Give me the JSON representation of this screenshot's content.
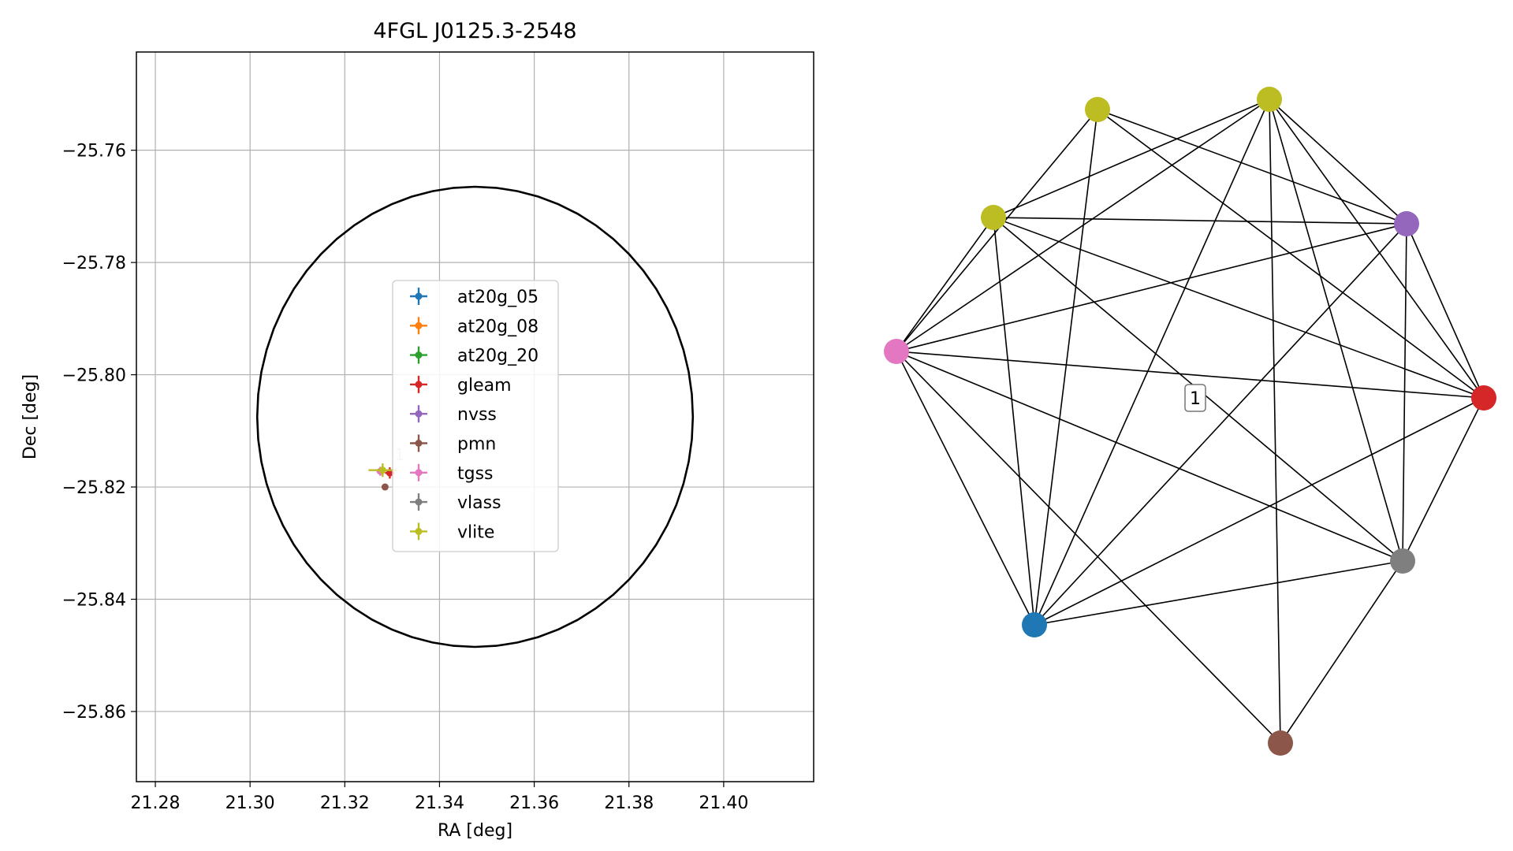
{
  "chart_data": [
    {
      "type": "scatter",
      "title": "4FGL J0125.3-2548",
      "xlabel": "RA [deg]",
      "ylabel": "Dec [deg]",
      "xlim": [
        21.276,
        21.419
      ],
      "ylim": [
        -25.8725,
        -25.7425
      ],
      "xticks": [
        21.28,
        21.3,
        21.32,
        21.34,
        21.36,
        21.38,
        21.4
      ],
      "xtick_labels": [
        "21.28",
        "21.30",
        "21.32",
        "21.34",
        "21.36",
        "21.38",
        "21.40"
      ],
      "yticks": [
        -25.76,
        -25.78,
        -25.8,
        -25.82,
        -25.84,
        -25.86
      ],
      "ytick_labels": [
        "−25.76",
        "−25.78",
        "−25.80",
        "−25.82",
        "−25.84",
        "−25.86"
      ],
      "grid": true,
      "legend_position": "center",
      "series": [
        {
          "name": "at20g_05",
          "color": "#1f77b4",
          "points": []
        },
        {
          "name": "at20g_08",
          "color": "#ff7f0e",
          "points": []
        },
        {
          "name": "at20g_20",
          "color": "#2ca02c",
          "points": []
        },
        {
          "name": "gleam",
          "color": "#d62728",
          "points": [
            {
              "x": 21.3295,
              "y": -25.8175,
              "xerr": 0.001,
              "yerr": 0.001
            }
          ]
        },
        {
          "name": "nvss",
          "color": "#9467bd",
          "points": []
        },
        {
          "name": "pmn",
          "color": "#8c564b",
          "points": [
            {
              "x": 21.3285,
              "y": -25.82,
              "xerr": 0,
              "yerr": 0
            }
          ]
        },
        {
          "name": "tgss",
          "color": "#e377c2",
          "points": [
            {
              "x": 21.3275,
              "y": -25.8172,
              "xerr": 0.0008,
              "yerr": 0.0008
            }
          ]
        },
        {
          "name": "vlass",
          "color": "#7f7f7f",
          "points": []
        },
        {
          "name": "vlite",
          "color": "#bcbd22",
          "points": [
            {
              "x": 21.328,
              "y": -25.817,
              "xerr": 0.003,
              "yerr": 0.0012
            }
          ]
        }
      ],
      "ellipse": {
        "center": [
          21.3475,
          -25.8075
        ],
        "ra_semi_axis": 0.046,
        "dec_semi_axis": 0.041,
        "color": "#000000"
      },
      "annotations": [
        {
          "text": "1",
          "x": 21.3305,
          "y": -25.8152,
          "color": "#c8c8c8"
        }
      ]
    },
    {
      "type": "network",
      "label": "1",
      "nodes": [
        {
          "id": "vlite_a",
          "color": "#bcbd22"
        },
        {
          "id": "vlite_b",
          "color": "#bcbd22"
        },
        {
          "id": "vlite_c",
          "color": "#bcbd22"
        },
        {
          "id": "nvss",
          "color": "#9467bd"
        },
        {
          "id": "tgss",
          "color": "#e377c2"
        },
        {
          "id": "gleam",
          "color": "#d62728"
        },
        {
          "id": "vlass",
          "color": "#7f7f7f"
        },
        {
          "id": "at20g",
          "color": "#1f77b4"
        },
        {
          "id": "pmn",
          "color": "#8c564b"
        }
      ],
      "edges": [
        [
          "vlite_b",
          "vlite_c"
        ],
        [
          "vlite_b",
          "tgss"
        ],
        [
          "vlite_b",
          "at20g"
        ],
        [
          "vlite_b",
          "nvss"
        ],
        [
          "vlite_b",
          "gleam"
        ],
        [
          "vlite_b",
          "vlass"
        ],
        [
          "vlite_b",
          "pmn"
        ],
        [
          "vlite_a",
          "tgss"
        ],
        [
          "vlite_a",
          "nvss"
        ],
        [
          "vlite_a",
          "gleam"
        ],
        [
          "vlite_a",
          "at20g"
        ],
        [
          "vlite_c",
          "tgss"
        ],
        [
          "vlite_c",
          "nvss"
        ],
        [
          "vlite_c",
          "at20g"
        ],
        [
          "vlite_c",
          "gleam"
        ],
        [
          "vlite_c",
          "vlass"
        ],
        [
          "tgss",
          "nvss"
        ],
        [
          "tgss",
          "gleam"
        ],
        [
          "tgss",
          "at20g"
        ],
        [
          "tgss",
          "vlass"
        ],
        [
          "tgss",
          "pmn"
        ],
        [
          "nvss",
          "gleam"
        ],
        [
          "nvss",
          "vlass"
        ],
        [
          "nvss",
          "at20g"
        ],
        [
          "gleam",
          "vlass"
        ],
        [
          "gleam",
          "at20g"
        ],
        [
          "vlass",
          "at20g"
        ],
        [
          "vlass",
          "pmn"
        ]
      ]
    }
  ]
}
